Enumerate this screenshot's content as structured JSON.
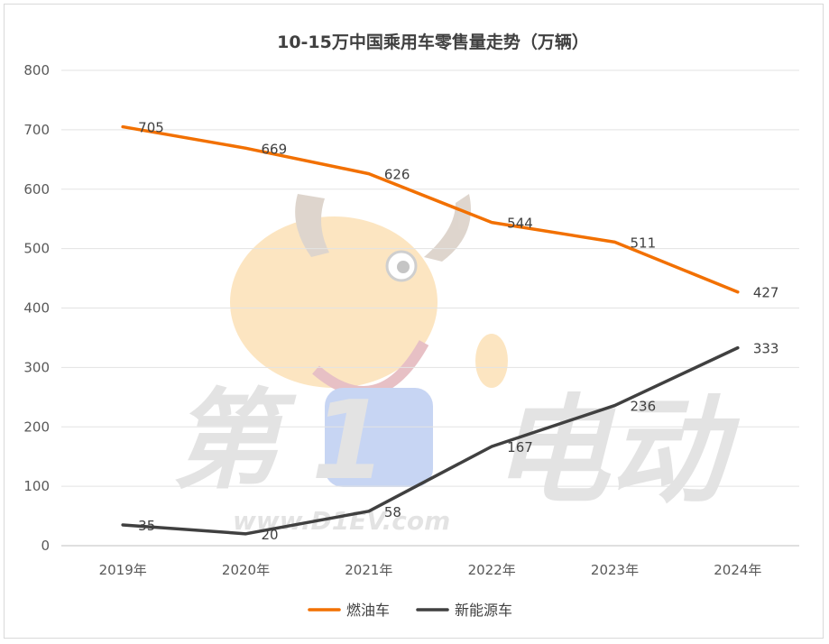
{
  "chart_data": {
    "type": "line",
    "title": "10-15万中国乘用车零售量走势（万辆）",
    "categories": [
      "2019年",
      "2020年",
      "2021年",
      "2022年",
      "2023年",
      "2024年"
    ],
    "series": [
      {
        "name": "燃油车",
        "values": [
          705,
          669,
          626,
          544,
          511,
          427
        ],
        "color": "#f27000"
      },
      {
        "name": "新能源车",
        "values": [
          35,
          20,
          58,
          167,
          236,
          333
        ],
        "color": "#404040"
      }
    ],
    "ylim": [
      0,
      800
    ],
    "yticks": [
      0,
      100,
      200,
      300,
      400,
      500,
      600,
      700,
      800
    ],
    "grid": true,
    "legend": "bottom",
    "data_labels": true
  },
  "watermark": {
    "text_main_1": "第",
    "text_main_2": "1",
    "text_main_3": "电动",
    "url": "www.D1EV.com"
  }
}
